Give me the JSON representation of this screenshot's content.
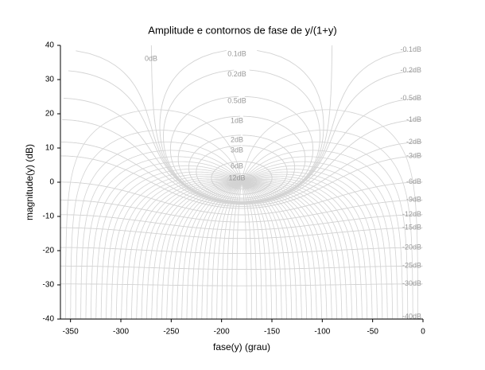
{
  "chart_data": {
    "type": "nichols",
    "title": "Amplitude e contornos de fase de y/(1+y)",
    "x_label": "fase(y) (grau)",
    "y_label": "magnitude(y) (dB)",
    "xlim": [
      -360,
      0
    ],
    "xticks": [
      -350,
      -300,
      -250,
      -200,
      -150,
      -100,
      -50,
      0
    ],
    "ylim": [
      -40,
      40
    ],
    "yticks": [
      -40,
      -30,
      -20,
      -10,
      0,
      10,
      20,
      30,
      40
    ],
    "contour_color": "#d3d3d3",
    "contours": [
      {
        "value": 0.1,
        "label": "0.1dB"
      },
      {
        "value": 0.2,
        "label": "0.2dB"
      },
      {
        "value": 0.5,
        "label": "0.5dB"
      },
      {
        "value": 1,
        "label": "1dB"
      },
      {
        "value": 2,
        "label": "2dB"
      },
      {
        "value": 3,
        "label": "3dB"
      },
      {
        "value": 6,
        "label": "6dB"
      },
      {
        "value": 12,
        "label": "12dB"
      },
      {
        "value": 0,
        "label": "0dB"
      },
      {
        "value": -0.1,
        "label": "-0.1dB"
      },
      {
        "value": -0.2,
        "label": "-0.2dB"
      },
      {
        "value": -0.5,
        "label": "-0.5dB"
      },
      {
        "value": -1,
        "label": "-1dB"
      },
      {
        "value": -2,
        "label": "-2dB"
      },
      {
        "value": -3,
        "label": "-3dB"
      },
      {
        "value": -6,
        "label": "-6dB"
      },
      {
        "value": -9,
        "label": "-9dB"
      },
      {
        "value": -12,
        "label": "-12dB"
      },
      {
        "value": -15,
        "label": "-15dB"
      },
      {
        "value": -20,
        "label": "-20dB"
      },
      {
        "value": -25,
        "label": "-25dB"
      },
      {
        "value": -30,
        "label": "-30dB"
      },
      {
        "value": -40,
        "label": "-40dB"
      }
    ]
  }
}
